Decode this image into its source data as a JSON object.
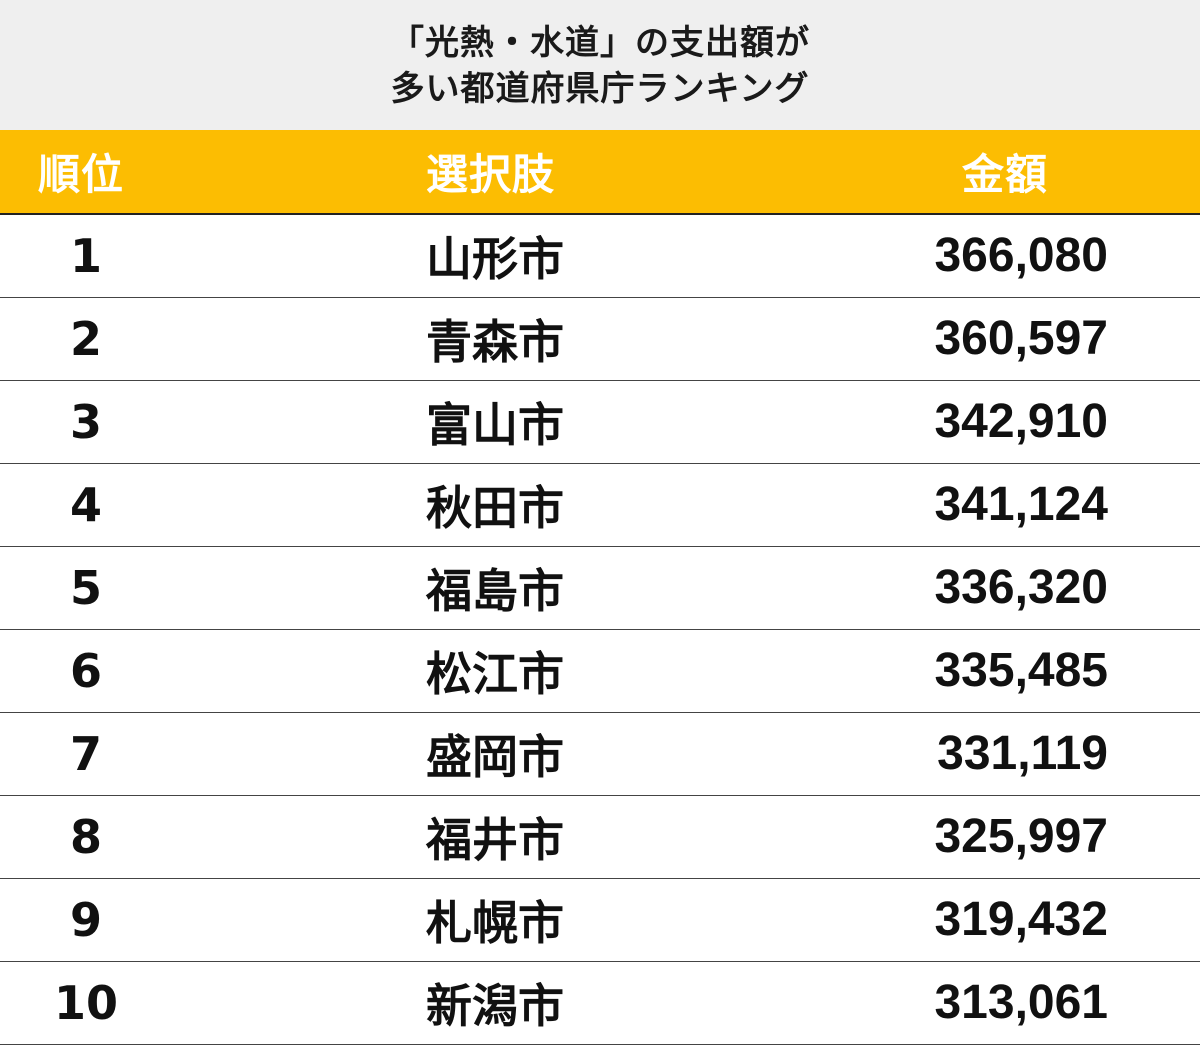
{
  "title": {
    "line1": "「光熱・水道」の支出額が",
    "line2": "多い都道府県庁ランキング"
  },
  "header_color": "#fcbd02",
  "table": {
    "headers": {
      "rank": "順位",
      "choice": "選択肢",
      "amount": "金額"
    },
    "rows": [
      {
        "rank": "1",
        "choice": "山形市",
        "amount": "366,080"
      },
      {
        "rank": "2",
        "choice": "青森市",
        "amount": "360,597"
      },
      {
        "rank": "3",
        "choice": "富山市",
        "amount": "342,910"
      },
      {
        "rank": "4",
        "choice": "秋田市",
        "amount": "341,124"
      },
      {
        "rank": "5",
        "choice": "福島市",
        "amount": "336,320"
      },
      {
        "rank": "6",
        "choice": "松江市",
        "amount": "335,485"
      },
      {
        "rank": "7",
        "choice": "盛岡市",
        "amount": "331,119"
      },
      {
        "rank": "8",
        "choice": "福井市",
        "amount": "325,997"
      },
      {
        "rank": "9",
        "choice": "札幌市",
        "amount": "319,432"
      },
      {
        "rank": "10",
        "choice": "新潟市",
        "amount": "313,061"
      }
    ]
  }
}
